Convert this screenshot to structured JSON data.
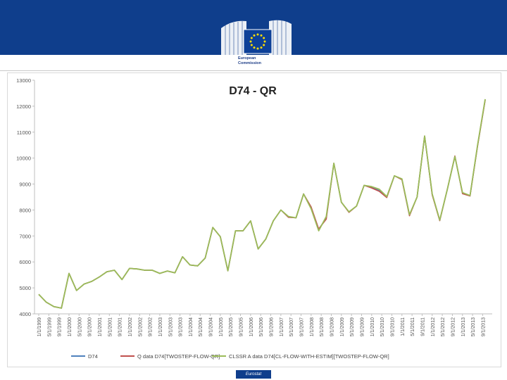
{
  "header": {
    "logo_line1": "European",
    "logo_line2": "Commission",
    "footer_badge": "Eurostat"
  },
  "colors": {
    "banner": "#0f3e8c",
    "series_d74": "#4f81bd",
    "series_q": "#c0504d",
    "series_clssr": "#9bbb59"
  },
  "chart_data": {
    "type": "line",
    "title": "D74 - QR",
    "xlabel": "",
    "ylabel": "",
    "ylim": [
      4000,
      13000
    ],
    "yticks": [
      4000,
      5000,
      6000,
      7000,
      8000,
      9000,
      10000,
      11000,
      12000,
      13000
    ],
    "x_tick_labels": [
      "1/1/1999",
      "5/1/1999",
      "9/1/1999",
      "1/1/2000",
      "5/1/2000",
      "9/1/2000",
      "1/1/2001",
      "5/1/2001",
      "9/1/2001",
      "1/1/2002",
      "5/1/2002",
      "9/1/2002",
      "1/1/2003",
      "5/1/2003",
      "9/1/2003",
      "1/1/2004",
      "5/1/2004",
      "9/1/2004",
      "1/1/2005",
      "5/1/2005",
      "9/1/2005",
      "1/1/2006",
      "5/1/2006",
      "9/1/2006",
      "1/1/2007",
      "5/1/2007",
      "9/1/2007",
      "1/1/2008",
      "5/1/2008",
      "9/1/2008",
      "1/1/2009",
      "5/1/2009",
      "9/1/2009",
      "1/1/2010",
      "5/1/2010",
      "9/1/2010",
      "1/1/2011",
      "5/1/2011",
      "9/1/2011",
      "1/1/2012",
      "5/1/2012",
      "9/1/2012",
      "1/1/2013",
      "5/1/2013",
      "9/1/2013"
    ],
    "grid": false,
    "legend": "bottom",
    "series": [
      {
        "name": "D74",
        "values": [
          4750,
          4450,
          4280,
          4220,
          5560,
          4900,
          5150,
          5250,
          5420,
          5620,
          5680,
          5320,
          5750,
          5730,
          5680,
          5680,
          5560,
          5650,
          5580,
          6200,
          5880,
          5850,
          6150,
          7330,
          6970,
          5660,
          7200,
          7200,
          7580,
          6500,
          6880,
          7580,
          8000,
          7730,
          7700,
          8620,
          8100,
          7250,
          7700,
          9800,
          8300,
          7920,
          8150,
          8950,
          8870,
          8750,
          8500,
          9320,
          9180,
          7800,
          8500,
          10850,
          8600,
          7600,
          8800,
          10070,
          8650,
          8550,
          10500,
          12250
        ]
      },
      {
        "name": "Q data D74[TWOSTEP-FLOW-QR]",
        "values": [
          4750,
          4450,
          4280,
          4220,
          5560,
          4900,
          5150,
          5250,
          5420,
          5620,
          5680,
          5320,
          5750,
          5730,
          5680,
          5680,
          5560,
          5650,
          5580,
          6200,
          5880,
          5850,
          6150,
          7330,
          6970,
          5660,
          7200,
          7200,
          7580,
          6500,
          6880,
          7580,
          8000,
          7720,
          7700,
          8620,
          8120,
          7270,
          7650,
          9800,
          8300,
          7910,
          8150,
          8950,
          8850,
          8720,
          8480,
          9320,
          9170,
          7780,
          8500,
          10850,
          8580,
          7590,
          8800,
          10080,
          8630,
          8540,
          10480,
          12230
        ]
      },
      {
        "name": "CLSSR A data D74[CL-FLOW-WITH-ESTIM][TWOSTEP-FLOW-QR]",
        "values": [
          4750,
          4450,
          4280,
          4220,
          5560,
          4900,
          5150,
          5250,
          5420,
          5620,
          5680,
          5320,
          5750,
          5730,
          5680,
          5680,
          5560,
          5650,
          5580,
          6200,
          5880,
          5850,
          6150,
          7330,
          6970,
          5660,
          7200,
          7200,
          7580,
          6500,
          6880,
          7580,
          8000,
          7750,
          7700,
          8620,
          8050,
          7200,
          7750,
          9800,
          8300,
          7930,
          8150,
          8950,
          8900,
          8800,
          8520,
          9320,
          9200,
          7820,
          8500,
          10850,
          8620,
          7610,
          8800,
          10060,
          8670,
          8560,
          10520,
          12270
        ]
      }
    ]
  }
}
